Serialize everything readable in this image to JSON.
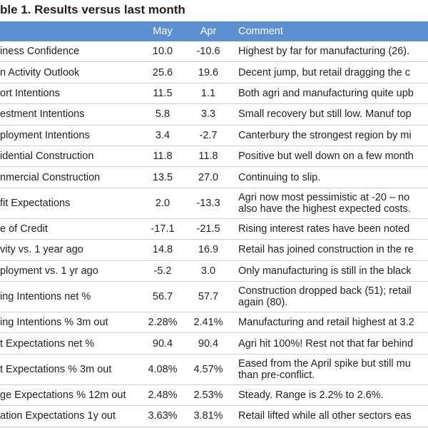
{
  "header": {
    "title": "ble 1. Results versus last month"
  },
  "table": {
    "columns": [
      "",
      "May",
      "Apr",
      "Comment"
    ],
    "rows": [
      [
        "iness Confidence",
        "10.0",
        "-10.6",
        [
          "Highest by far for manufacturing (26)."
        ]
      ],
      [
        "n Activity Outlook",
        "25.6",
        "19.6",
        [
          "Decent jump, but retail dragging the c"
        ]
      ],
      [
        "ort Intentions",
        "11.5",
        "1.1",
        [
          "Both agri and manufacturing quite upb"
        ]
      ],
      [
        "estment Intentions",
        "5.8",
        "3.3",
        [
          "Small recovery but still low. Manuf top"
        ]
      ],
      [
        "ployment Intentions",
        "3.4",
        "-2.7",
        [
          "Canterbury the strongest region by mi"
        ]
      ],
      [
        "idential Construction",
        "11.8",
        "11.8",
        [
          "Positive but well down on a few month"
        ]
      ],
      [
        "nmercial Construction",
        "13.5",
        "27.0",
        [
          "Continuing to slip."
        ]
      ],
      [
        "fit Expectations",
        "2.0",
        "-13.3",
        [
          "Agri now most pessimistic at -20 – no",
          "also have the highest expected costs."
        ]
      ],
      [
        "e of Credit",
        "-17.1",
        "-21.5",
        [
          "Rising interest rates have been noted"
        ]
      ],
      [
        "vity vs. 1 year ago",
        "14.8",
        "16.9",
        [
          "Retail has joined construction in the re"
        ]
      ],
      [
        "ployment vs. 1 yr ago",
        "-5.2",
        "3.0",
        [
          "Only manufacturing is still in the black"
        ]
      ],
      [
        "ing Intentions net %",
        "56.7",
        "57.7",
        [
          "Construction dropped back (51); retail",
          "again (80)."
        ]
      ],
      [
        "ing Intentions % 3m out",
        "2.28%",
        "2.41%",
        [
          "Manufacturing and retail highest at 3.2"
        ]
      ],
      [
        "t Expectations net %",
        "90.4",
        "90.4",
        [
          "Agri hit 100%! Rest not that far behind"
        ]
      ],
      [
        "t Expectations % 3m out",
        "4.08%",
        "4.57%",
        [
          "Eased from the April spike but still mu",
          "than pre-conflict."
        ]
      ],
      [
        "ge Expectations % 12m out",
        "2.48%",
        "2.53%",
        [
          "Steady. Range is 2.2% to 2.6%."
        ]
      ],
      [
        "ation Expectations 1y out",
        "3.63%",
        "3.81%",
        [
          "Retail lifted while all other sectors eas"
        ]
      ]
    ]
  }
}
